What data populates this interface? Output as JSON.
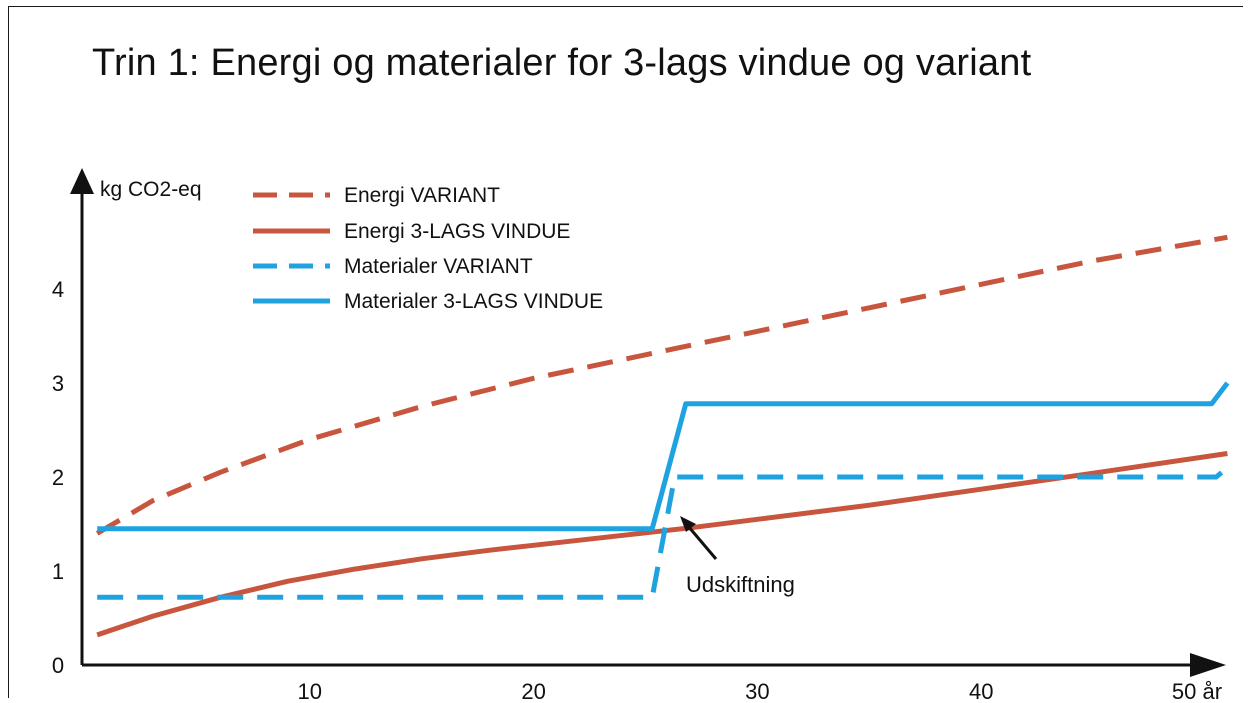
{
  "title": "Trin 1: Energi og materialer for 3-lags vindue og variant",
  "chart_data": {
    "type": "line",
    "title": "Trin 1: Energi og materialer for 3-lags vindue og variant",
    "ylabel": "kg CO2-eq",
    "xlabel_unit": "år",
    "xlim": [
      0,
      51
    ],
    "ylim": [
      0,
      4.6
    ],
    "x_ticks": [
      {
        "value": 10,
        "label": "10"
      },
      {
        "value": 20,
        "label": "20"
      },
      {
        "value": 30,
        "label": "30"
      },
      {
        "value": 40,
        "label": "40"
      },
      {
        "value": 50,
        "label": "50 år"
      }
    ],
    "y_ticks": [
      {
        "value": 0,
        "label": "0"
      },
      {
        "value": 1,
        "label": "1"
      },
      {
        "value": 2,
        "label": "2"
      },
      {
        "value": 3,
        "label": "3"
      },
      {
        "value": 4,
        "label": "4"
      }
    ],
    "series": [
      {
        "name": "Energi VARIANT",
        "color": "#c8553d",
        "dash": "dashed",
        "points": [
          [
            0.5,
            1.4
          ],
          [
            3,
            1.75
          ],
          [
            6,
            2.05
          ],
          [
            10,
            2.4
          ],
          [
            15,
            2.75
          ],
          [
            20,
            3.05
          ],
          [
            25,
            3.3
          ],
          [
            30,
            3.55
          ],
          [
            35,
            3.8
          ],
          [
            40,
            4.05
          ],
          [
            45,
            4.3
          ],
          [
            51,
            4.55
          ]
        ]
      },
      {
        "name": "Energi 3-LAGS VINDUE",
        "color": "#c8553d",
        "dash": "solid",
        "points": [
          [
            0.5,
            0.32
          ],
          [
            3,
            0.52
          ],
          [
            6,
            0.72
          ],
          [
            9,
            0.89
          ],
          [
            12,
            1.02
          ],
          [
            15,
            1.13
          ],
          [
            18,
            1.22
          ],
          [
            21,
            1.3
          ],
          [
            24,
            1.38
          ],
          [
            27,
            1.46
          ],
          [
            30,
            1.55
          ],
          [
            35,
            1.7
          ],
          [
            40,
            1.87
          ],
          [
            45,
            2.04
          ],
          [
            51,
            2.25
          ]
        ]
      },
      {
        "name": "Materialer VARIANT",
        "color": "#1fa3e0",
        "dash": "dashed",
        "points": [
          [
            0.5,
            0.72
          ],
          [
            25.3,
            0.72
          ],
          [
            26.3,
            2.0
          ],
          [
            50.5,
            2.0
          ],
          [
            51,
            2.1
          ]
        ]
      },
      {
        "name": "Materialer 3-LAGS VINDUE",
        "color": "#1fa3e0",
        "dash": "solid",
        "points": [
          [
            0.5,
            1.45
          ],
          [
            25.3,
            1.45
          ],
          [
            26.8,
            2.78
          ],
          [
            50.3,
            2.78
          ],
          [
            51,
            3.0
          ]
        ]
      }
    ],
    "legend_position": "top-left",
    "annotations": [
      {
        "text": "Udskiftning",
        "x": 26.5,
        "y": 1.15
      }
    ],
    "grid": false
  }
}
